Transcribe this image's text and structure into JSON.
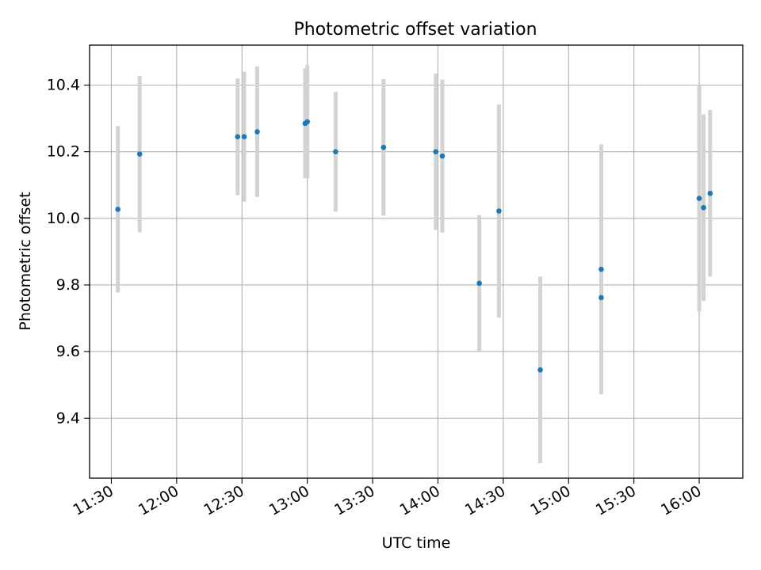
{
  "chart_data": {
    "type": "scatter",
    "title": "Photometric offset variation",
    "xlabel": "UTC time",
    "ylabel": "Photometric offset",
    "x_tick_labels": [
      "11:30",
      "12:00",
      "12:30",
      "13:00",
      "13:30",
      "14:00",
      "14:30",
      "15:00",
      "15:30",
      "16:00"
    ],
    "x_ticks": [
      "11:30",
      "12:00",
      "12:30",
      "13:00",
      "13:30",
      "14:00",
      "14:30",
      "15:00",
      "15:30",
      "16:00"
    ],
    "y_ticks": [
      9.4,
      9.6,
      9.8,
      10.0,
      10.2,
      10.4
    ],
    "y_tick_labels": [
      "9.4",
      "9.6",
      "9.8",
      "10.0",
      "10.2",
      "10.4"
    ],
    "xlim": [
      "11:20",
      "16:20"
    ],
    "ylim": [
      9.22,
      10.52
    ],
    "grid": true,
    "marker_color": "#1f77b4",
    "errorbar_color": "#d3d3d3",
    "points": [
      {
        "x": "11:33",
        "y": 10.027,
        "yerr": 0.25
      },
      {
        "x": "11:43",
        "y": 10.193,
        "yerr": 0.235
      },
      {
        "x": "12:28",
        "y": 10.245,
        "yerr": 0.175
      },
      {
        "x": "12:31",
        "y": 10.245,
        "yerr": 0.195
      },
      {
        "x": "12:37",
        "y": 10.26,
        "yerr": 0.196
      },
      {
        "x": "12:59",
        "y": 10.285,
        "yerr": 0.165
      },
      {
        "x": "13:00",
        "y": 10.29,
        "yerr": 0.17
      },
      {
        "x": "13:13",
        "y": 10.2,
        "yerr": 0.18
      },
      {
        "x": "13:35",
        "y": 10.213,
        "yerr": 0.205
      },
      {
        "x": "13:59",
        "y": 10.2,
        "yerr": 0.235
      },
      {
        "x": "14:02",
        "y": 10.187,
        "yerr": 0.23
      },
      {
        "x": "14:19",
        "y": 9.805,
        "yerr": 0.205
      },
      {
        "x": "14:28",
        "y": 10.022,
        "yerr": 0.32
      },
      {
        "x": "14:47",
        "y": 9.545,
        "yerr": 0.28
      },
      {
        "x": "15:15",
        "y": 9.762,
        "yerr": 0.285
      },
      {
        "x": "15:15",
        "y": 9.847,
        "yerr": 0.375
      },
      {
        "x": "16:00",
        "y": 10.06,
        "yerr": 0.34
      },
      {
        "x": "16:02",
        "y": 10.032,
        "yerr": 0.28
      },
      {
        "x": "16:05",
        "y": 10.075,
        "yerr": 0.25
      }
    ]
  }
}
